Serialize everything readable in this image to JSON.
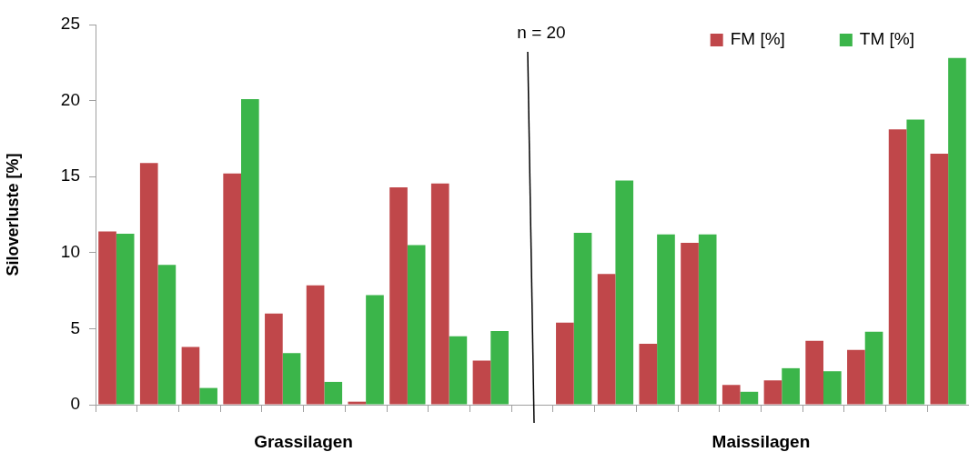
{
  "chart_data": {
    "type": "bar",
    "ylabel": "Siloverluste [%]",
    "categories": [
      null,
      null,
      null,
      null,
      null,
      null,
      null,
      null,
      null,
      null,
      null,
      null,
      null,
      null,
      null,
      null,
      null,
      null,
      null,
      null,
      null
    ],
    "series": [
      {
        "name": "FM [%]",
        "color": "#c0474a",
        "values": [
          11.4,
          15.9,
          3.8,
          15.2,
          6.0,
          7.85,
          0.2,
          14.3,
          14.55,
          2.9,
          null,
          5.4,
          8.6,
          4.0,
          10.65,
          1.3,
          1.6,
          4.2,
          3.6,
          18.1,
          16.5
        ]
      },
      {
        "name": "TM [%]",
        "color": "#3bb54a",
        "values": [
          11.25,
          9.2,
          1.1,
          20.1,
          3.4,
          1.5,
          7.2,
          10.5,
          4.5,
          4.85,
          null,
          11.3,
          14.75,
          11.2,
          11.2,
          0.85,
          2.4,
          2.2,
          4.8,
          18.75,
          22.8
        ]
      }
    ],
    "ylim": [
      0,
      25
    ],
    "yticks": [
      0,
      5,
      10,
      15,
      20,
      25
    ],
    "grid": false,
    "legend": "top right",
    "annotations": [
      "n = 20",
      "Grassilagen",
      "Maissilagen"
    ]
  }
}
